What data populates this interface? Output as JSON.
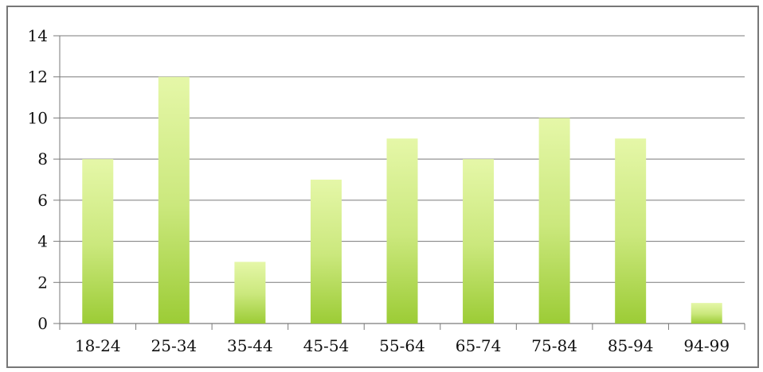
{
  "chart_data": {
    "type": "bar",
    "title": "",
    "xlabel": "",
    "ylabel": "",
    "categories": [
      "18-24",
      "25-34",
      "35-44",
      "45-54",
      "55-64",
      "65-74",
      "75-84",
      "85-94",
      "94-99"
    ],
    "values": [
      8,
      12,
      3,
      7,
      9,
      8,
      10,
      9,
      1
    ],
    "ylim": [
      0,
      14
    ],
    "yticks": [
      0,
      2,
      4,
      6,
      8,
      10,
      12,
      14
    ],
    "grid": true,
    "legend": "none",
    "colors": {
      "bar_light": "#e5f7a8",
      "bar_dark": "#9ccc36",
      "grid": "#7a7a7a",
      "frame": "#777777",
      "text": "#111111"
    }
  }
}
